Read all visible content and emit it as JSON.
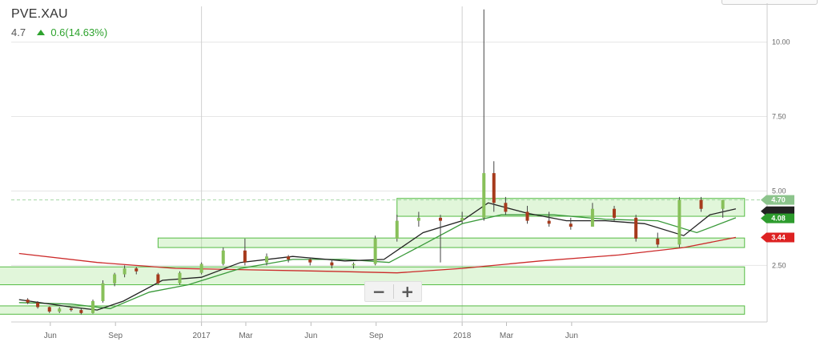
{
  "header": {
    "ticker": "PVE.XAU",
    "last_price": "4.7",
    "change": "0.6(14.63%)",
    "change_color": "#2ea32e"
  },
  "zoom": {
    "minus_label": "−",
    "plus_label": "+"
  },
  "chart_data": {
    "type": "candlestick",
    "x_tick_labels": [
      "Jun",
      "Sep",
      "2017",
      "Mar",
      "Jun",
      "Sep",
      "2018",
      "Mar",
      "Jun"
    ],
    "y_ticks": [
      {
        "value": 10.0,
        "label": "10.00"
      },
      {
        "value": 7.5,
        "label": "7.50"
      },
      {
        "value": 5.0,
        "label": "5.00"
      },
      {
        "value": 2.5,
        "label": "2.50"
      }
    ],
    "ylim": [
      0.6,
      11.2
    ],
    "price_badges": [
      {
        "label": "4.70",
        "value": 4.7,
        "color": "#8cc48c",
        "text_color": "#ffffff"
      },
      {
        "label": "",
        "value": 4.32,
        "color": "#222222",
        "text_color": "#ffffff"
      },
      {
        "label": "4.08",
        "value": 4.08,
        "color": "#2e9c2e",
        "text_color": "#ffffff"
      },
      {
        "label": "3.44",
        "value": 3.44,
        "color": "#dd2222",
        "text_color": "#ffffff"
      }
    ],
    "last_price_line": 4.7,
    "zones": [
      {
        "x_from": "2017-10",
        "x_to": "2019-02",
        "low": 4.15,
        "high": 4.75
      },
      {
        "x_from": "2016-11",
        "x_to": "2019-02",
        "low": 3.1,
        "high": 3.42
      },
      {
        "x_from": "2015-12",
        "x_to": "2019-02",
        "low": 1.85,
        "high": 2.45
      },
      {
        "x_from": "2015-12",
        "x_to": "2019-02",
        "low": 0.86,
        "high": 1.14
      }
    ],
    "candles": [
      [
        "2016-05-01",
        1.35,
        1.4,
        1.2,
        1.25
      ],
      [
        "2016-05-15",
        1.25,
        1.3,
        1.05,
        1.1
      ],
      [
        "2016-06-01",
        1.1,
        1.12,
        0.9,
        0.95
      ],
      [
        "2016-06-15",
        0.95,
        1.1,
        0.9,
        1.05
      ],
      [
        "2016-07-01",
        1.05,
        1.1,
        0.95,
        1.0
      ],
      [
        "2016-07-15",
        1.0,
        1.05,
        0.85,
        0.9
      ],
      [
        "2016-08-01",
        0.9,
        1.35,
        0.88,
        1.3
      ],
      [
        "2016-08-15",
        1.3,
        2.0,
        1.25,
        1.9
      ],
      [
        "2016-09-01",
        1.9,
        2.25,
        1.8,
        2.2
      ],
      [
        "2016-09-15",
        2.2,
        2.5,
        2.1,
        2.4
      ],
      [
        "2016-10-01",
        2.4,
        2.45,
        2.2,
        2.3
      ],
      [
        "2016-11-01",
        2.2,
        2.25,
        1.85,
        1.9
      ],
      [
        "2016-12-01",
        1.9,
        2.3,
        1.85,
        2.25
      ],
      [
        "2017-01-01",
        2.25,
        2.6,
        2.2,
        2.55
      ],
      [
        "2017-02-01",
        2.55,
        3.1,
        2.5,
        3.0
      ],
      [
        "2017-03-01",
        3.0,
        3.4,
        2.5,
        2.6
      ],
      [
        "2017-04-01",
        2.6,
        2.9,
        2.5,
        2.8
      ],
      [
        "2017-05-01",
        2.8,
        2.85,
        2.6,
        2.7
      ],
      [
        "2017-06-01",
        2.7,
        2.75,
        2.5,
        2.6
      ],
      [
        "2017-07-01",
        2.6,
        2.7,
        2.4,
        2.5
      ],
      [
        "2017-08-01",
        2.5,
        2.6,
        2.4,
        2.55
      ],
      [
        "2017-09-01",
        2.55,
        3.5,
        2.5,
        3.4
      ],
      [
        "2017-10-01",
        3.4,
        4.2,
        3.3,
        4.0
      ],
      [
        "2017-11-01",
        4.0,
        4.3,
        3.8,
        4.1
      ],
      [
        "2017-12-01",
        4.1,
        4.2,
        2.6,
        4.0
      ],
      [
        "2018-01-01",
        4.0,
        4.3,
        3.9,
        4.1
      ],
      [
        "2018-02-01",
        4.1,
        11.1,
        4.0,
        5.6
      ],
      [
        "2018-02-15",
        5.6,
        6.0,
        4.3,
        4.6
      ],
      [
        "2018-03-01",
        4.6,
        4.8,
        4.2,
        4.3
      ],
      [
        "2018-04-01",
        4.3,
        4.5,
        3.9,
        4.0
      ],
      [
        "2018-05-01",
        4.0,
        4.3,
        3.8,
        3.9
      ],
      [
        "2018-06-01",
        3.9,
        4.1,
        3.7,
        3.8
      ],
      [
        "2018-07-01",
        3.8,
        4.6,
        3.8,
        4.4
      ],
      [
        "2018-08-01",
        4.4,
        4.5,
        4.0,
        4.1
      ],
      [
        "2018-09-01",
        4.1,
        4.2,
        3.3,
        3.4
      ],
      [
        "2018-10-01",
        3.4,
        3.6,
        3.1,
        3.2
      ],
      [
        "2018-11-01",
        3.2,
        4.8,
        3.1,
        4.7
      ],
      [
        "2018-12-01",
        4.7,
        4.8,
        4.3,
        4.4
      ],
      [
        "2019-01-01",
        4.4,
        4.7,
        4.1,
        4.7
      ]
    ],
    "ma_short": [
      [
        2016.3,
        1.35
      ],
      [
        2016.5,
        1.1
      ],
      [
        2016.6,
        1.0
      ],
      [
        2016.7,
        1.3
      ],
      [
        2016.85,
        2.0
      ],
      [
        2017.0,
        2.1
      ],
      [
        2017.15,
        2.6
      ],
      [
        2017.35,
        2.8
      ],
      [
        2017.55,
        2.65
      ],
      [
        2017.7,
        2.7
      ],
      [
        2017.85,
        3.6
      ],
      [
        2018.0,
        4.0
      ],
      [
        2018.1,
        4.6
      ],
      [
        2018.25,
        4.25
      ],
      [
        2018.4,
        4.0
      ],
      [
        2018.55,
        4.0
      ],
      [
        2018.7,
        3.9
      ],
      [
        2018.85,
        3.5
      ],
      [
        2018.95,
        4.2
      ],
      [
        2019.05,
        4.4
      ]
    ],
    "ma_mid": [
      [
        2016.3,
        1.25
      ],
      [
        2016.5,
        1.2
      ],
      [
        2016.65,
        1.05
      ],
      [
        2016.8,
        1.6
      ],
      [
        2016.95,
        1.85
      ],
      [
        2017.15,
        2.4
      ],
      [
        2017.35,
        2.7
      ],
      [
        2017.55,
        2.7
      ],
      [
        2017.72,
        2.6
      ],
      [
        2017.85,
        3.2
      ],
      [
        2018.0,
        3.9
      ],
      [
        2018.15,
        4.2
      ],
      [
        2018.35,
        4.2
      ],
      [
        2018.55,
        4.05
      ],
      [
        2018.75,
        4.0
      ],
      [
        2018.9,
        3.6
      ],
      [
        2019.05,
        4.1
      ]
    ],
    "ma_long": [
      [
        2016.3,
        2.9
      ],
      [
        2016.6,
        2.6
      ],
      [
        2016.9,
        2.4
      ],
      [
        2017.2,
        2.35
      ],
      [
        2017.5,
        2.3
      ],
      [
        2017.75,
        2.25
      ],
      [
        2018.0,
        2.4
      ],
      [
        2018.3,
        2.65
      ],
      [
        2018.6,
        2.85
      ],
      [
        2018.85,
        3.1
      ],
      [
        2019.05,
        3.44
      ]
    ]
  }
}
